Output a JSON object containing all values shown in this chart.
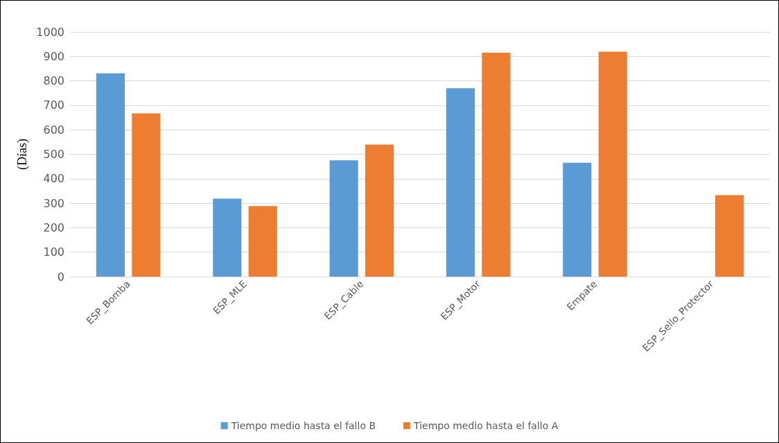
{
  "chart_data": {
    "type": "bar",
    "ylabel": "(Días)",
    "categories": [
      "ESP_Bomba",
      "ESP_MLE",
      "ESP_Cable",
      "ESP_Motor",
      "Empate",
      "ESP_Sello_Protector"
    ],
    "series": [
      {
        "name": "Tiempo medio hasta el fallo B",
        "color": "#5b9bd5",
        "values": [
          831,
          319,
          475,
          770,
          465,
          null
        ]
      },
      {
        "name": "Tiempo medio hasta el fallo A",
        "color": "#ed7d31",
        "values": [
          667,
          288,
          540,
          915,
          919,
          333
        ]
      }
    ],
    "ylim": [
      0,
      1000
    ],
    "yticks": [
      0,
      100,
      200,
      300,
      400,
      500,
      600,
      700,
      800,
      900,
      1000
    ],
    "grid": "y",
    "legend": "bottom"
  }
}
